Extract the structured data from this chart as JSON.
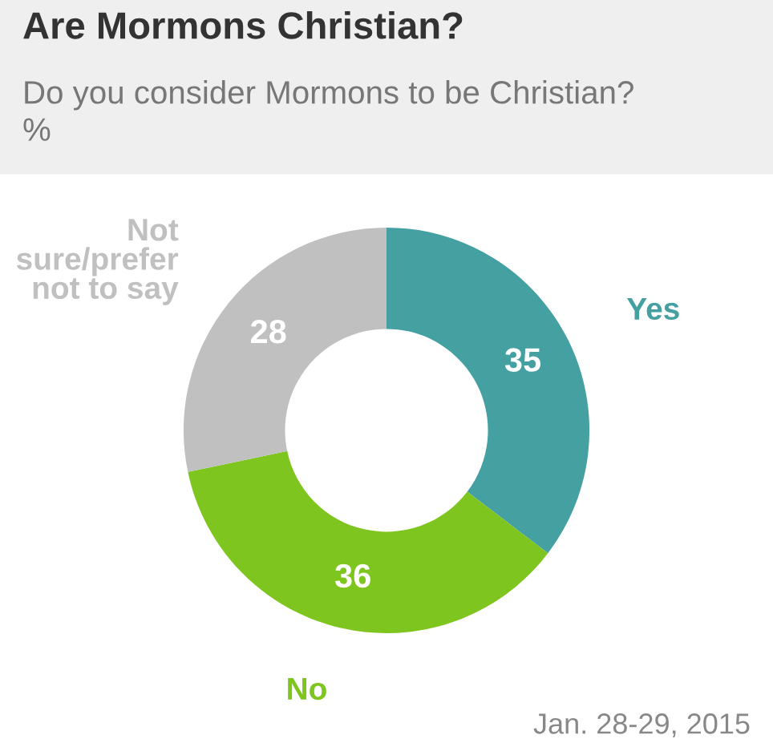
{
  "chart_data": {
    "type": "donut",
    "title": "Are Mormons Christian?",
    "subtitle": "Do you consider Mormons to be Christian?\n%",
    "categories": [
      "Yes",
      "No",
      "Not\nsure/prefer\nnot to say"
    ],
    "values": [
      35,
      36,
      28
    ],
    "colors": [
      "#45a0a1",
      "#7fc51f",
      "#c0c0c0"
    ],
    "data_labels": true,
    "legend": false,
    "annotations": [
      "Jan. 28-29, 2015"
    ]
  }
}
